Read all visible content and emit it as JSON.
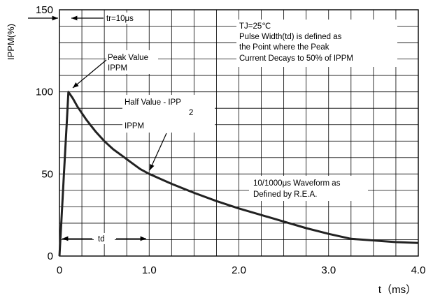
{
  "chart_data": {
    "type": "line",
    "x_ticks": [
      "0",
      "1.0",
      "2.0",
      "3.0",
      "4.0"
    ],
    "y_ticks": [
      "0",
      "50",
      "100",
      "150"
    ],
    "xlabel": "t（ms）",
    "ylabel": "IPPM(%)",
    "xlim": [
      0,
      4.0
    ],
    "ylim": [
      0,
      150
    ],
    "grid": true,
    "grid_x_step": 0.25,
    "grid_y_step": 10,
    "series": [
      {
        "x": [
          0,
          0.02,
          0.05,
          0.08,
          0.1,
          0.15,
          0.2,
          0.3,
          0.4,
          0.5,
          0.6,
          0.7,
          0.8,
          0.9,
          1.0,
          1.25,
          1.5,
          1.75,
          2.0,
          2.25,
          2.5,
          2.75,
          3.0,
          3.25,
          3.5,
          3.75,
          4.0
        ],
        "y": [
          0,
          20,
          50,
          80,
          100,
          96,
          91,
          83,
          76,
          70,
          65,
          61,
          57,
          53,
          50,
          44,
          38.5,
          33.5,
          29,
          25,
          21,
          17,
          13.5,
          10.5,
          9.5,
          8.5,
          8
        ]
      }
    ],
    "annotations": {
      "tr": "tr=10μs",
      "conditions": [
        "TJ=25℃",
        "Pulse Width(td) is defined as",
        "the Point where the Peak",
        "Current Decays to 50% of IPPM"
      ],
      "peak": [
        "Peak Value",
        "IPPM"
      ],
      "half_line1": "Half Value - IPP",
      "half_sub": "2",
      "half_line2": "IPPM",
      "waveform": [
        "10/1000μs Waveform as",
        "Defined by R.E.A."
      ],
      "td": "td"
    }
  }
}
